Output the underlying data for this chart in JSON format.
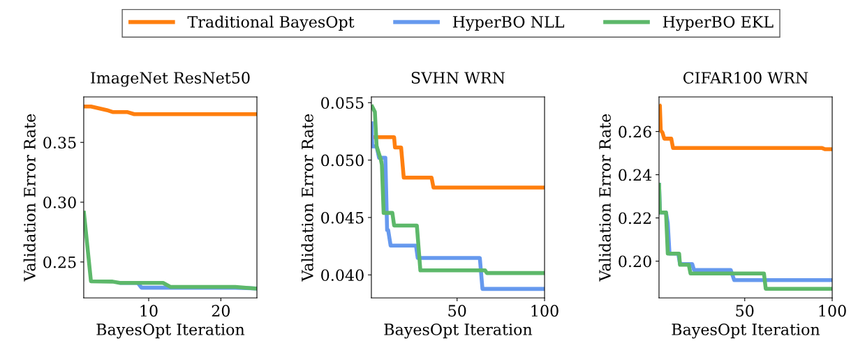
{
  "chart_data": [
    {
      "type": "line",
      "title": "ImageNet ResNet50",
      "xlabel": "BayesOpt Iteration",
      "ylabel": "Validation Error Rate",
      "xlim": [
        1,
        25
      ],
      "xticks": [
        10,
        20
      ],
      "ylim": [
        0.22,
        0.388
      ],
      "yticks": [
        0.25,
        {
          "value": 0.3,
          "label": "0.30"
        },
        0.35
      ],
      "legend": "top",
      "grid": false,
      "series": [
        {
          "name": "Traditional BayesOpt",
          "color": "#ff7f0e",
          "x": [
            1,
            2,
            4.2,
            5,
            7,
            8,
            25
          ],
          "values": [
            0.38,
            0.38,
            0.377,
            0.3754,
            0.3754,
            0.3736,
            0.3736
          ]
        },
        {
          "name": "HyperBO NLL",
          "color": "#6699ee",
          "x": [
            6,
            8.5,
            9,
            22,
            25
          ],
          "values": [
            0.2325,
            0.2325,
            0.2285,
            0.2285,
            0.2278
          ]
        },
        {
          "name": "HyperBO EKL",
          "color": "#5db86a",
          "x": [
            1,
            2,
            5,
            6,
            12,
            13,
            22,
            25
          ],
          "values": [
            0.2928,
            0.2338,
            0.2336,
            0.2325,
            0.2325,
            0.2292,
            0.2292,
            0.2277
          ]
        }
      ]
    },
    {
      "type": "line",
      "title": "SVHN WRN",
      "xlabel": "BayesOpt Iteration",
      "ylabel": "Validation Error Rate",
      "xlim": [
        1,
        100
      ],
      "xticks": [
        50,
        100
      ],
      "ylim": [
        0.038,
        0.0555
      ],
      "yticks": [
        {
          "value": 0.04,
          "label": "0.040"
        },
        {
          "value": 0.045,
          "label": "0.045"
        },
        {
          "value": 0.05,
          "label": "0.050"
        },
        {
          "value": 0.055,
          "label": "0.055"
        }
      ],
      "grid": false,
      "series": [
        {
          "color": "#ff7f0e",
          "x": [
            1,
            14,
            14.5,
            18,
            19.5,
            35.4,
            36.5,
            100
          ],
          "values": [
            0.052,
            0.052,
            0.0511,
            0.0511,
            0.04847,
            0.04847,
            0.04761,
            0.04761
          ]
        },
        {
          "color": "#6699ee",
          "x": [
            1,
            1.5,
            4,
            5.4,
            9,
            10,
            10.6,
            12,
            26.5,
            27.5,
            63,
            64.5,
            100
          ],
          "values": [
            0.05337,
            0.0512,
            0.0512,
            0.0502,
            0.0502,
            0.0439,
            0.0439,
            0.04255,
            0.04255,
            0.04147,
            0.04147,
            0.03878,
            0.03878
          ]
        },
        {
          "color": "#5db86a",
          "x": [
            1,
            3,
            4,
            6.5,
            7,
            8,
            13,
            14,
            27,
            29,
            66,
            67,
            100
          ],
          "values": [
            0.0548,
            0.0542,
            0.0512,
            0.05,
            0.0496,
            0.0454,
            0.0454,
            0.0443,
            0.0443,
            0.0404,
            0.0404,
            0.04016,
            0.04016
          ]
        }
      ]
    },
    {
      "type": "line",
      "title": "CIFAR100 WRN",
      "xlabel": "BayesOpt Iteration",
      "ylabel": "Validation Error Rate",
      "xlim": [
        1,
        100
      ],
      "xticks": [
        50,
        100
      ],
      "ylim": [
        0.183,
        0.276
      ],
      "yticks": [
        {
          "value": 0.2,
          "label": "0.20"
        },
        0.22,
        0.24,
        0.26
      ],
      "grid": false,
      "series": [
        {
          "color": "#ff7f0e",
          "x": [
            1,
            1.5,
            2,
            3,
            4,
            8,
            9,
            94,
            96,
            100
          ],
          "values": [
            0.2725,
            0.272,
            0.2605,
            0.2595,
            0.2567,
            0.2567,
            0.2524,
            0.2524,
            0.2518,
            0.2518
          ]
        },
        {
          "color": "#6699ee",
          "x": [
            1,
            1.5,
            5,
            6,
            7,
            12,
            13,
            20,
            21,
            42,
            44,
            100
          ],
          "values": [
            0.2362,
            0.2225,
            0.2225,
            0.2176,
            0.2035,
            0.2035,
            0.1986,
            0.1986,
            0.1959,
            0.1959,
            0.1912,
            0.1912
          ]
        },
        {
          "color": "#5db86a",
          "x": [
            1,
            1.5,
            5,
            6,
            12.5,
            13,
            18,
            19,
            61,
            62,
            100
          ],
          "values": [
            0.2362,
            0.2225,
            0.2225,
            0.2035,
            0.2035,
            0.1983,
            0.1983,
            0.1943,
            0.1943,
            0.1872,
            0.1872
          ]
        }
      ]
    }
  ]
}
